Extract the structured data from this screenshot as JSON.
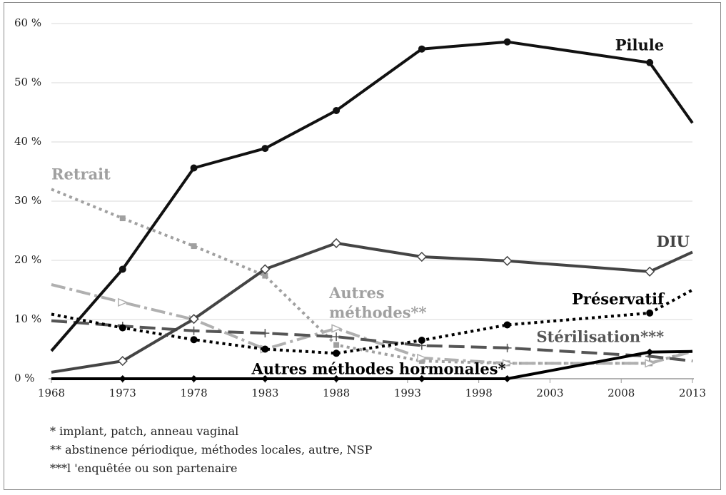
{
  "chart_data": {
    "type": "line",
    "x": [
      1968,
      1973,
      1978,
      1983,
      1988,
      1993,
      1998,
      2003,
      2008,
      2013
    ],
    "y_ticks": [
      "0 %",
      "10 %",
      "20 %",
      "30 %",
      "40 %",
      "50 %",
      "60 %"
    ],
    "ylim": [
      0,
      60
    ],
    "xlim": [
      1968,
      2013
    ],
    "grid": true,
    "legend": "inline labels",
    "series": [
      {
        "name": "Pilule",
        "color": "#111111",
        "dash": "solid",
        "marker": "circle-filled",
        "points": [
          [
            1968,
            4.7
          ],
          [
            1973,
            18.5
          ],
          [
            1978,
            35.6
          ],
          [
            1983,
            38.9
          ],
          [
            1988,
            45.3
          ],
          [
            1994,
            55.7
          ],
          [
            2000,
            56.9
          ],
          [
            2010,
            53.4
          ],
          [
            2013,
            43.2
          ]
        ]
      },
      {
        "name": "DIU",
        "color": "#444444",
        "dash": "solid",
        "marker": "diamond-open",
        "points": [
          [
            1968,
            1.1
          ],
          [
            1973,
            3.0
          ],
          [
            1978,
            10.1
          ],
          [
            1983,
            18.5
          ],
          [
            1988,
            22.9
          ],
          [
            1994,
            20.6
          ],
          [
            2000,
            19.9
          ],
          [
            2010,
            18.1
          ],
          [
            2013,
            21.4
          ]
        ]
      },
      {
        "name": "Retrait",
        "color": "#a0a0a0",
        "dash": "dotted",
        "marker": "square-filled",
        "points": [
          [
            1968,
            32.0
          ],
          [
            1973,
            27.1
          ],
          [
            1978,
            22.4
          ],
          [
            1983,
            17.4
          ],
          [
            1988,
            5.7
          ],
          [
            1994,
            3.0
          ],
          [
            2000,
            2.6
          ],
          [
            2010,
            2.6
          ],
          [
            2013,
            4.7
          ]
        ]
      },
      {
        "name": "Préservatif",
        "color": "#000000",
        "dash": "dotted",
        "marker": "circle-filled",
        "points": [
          [
            1968,
            10.9
          ],
          [
            1973,
            8.6
          ],
          [
            1978,
            6.6
          ],
          [
            1983,
            5.0
          ],
          [
            1988,
            4.3
          ],
          [
            1994,
            6.5
          ],
          [
            2000,
            9.1
          ],
          [
            2010,
            11.1
          ],
          [
            2013,
            15.0
          ]
        ]
      },
      {
        "name": "Stérilisation***",
        "color": "#555555",
        "dash": "long-dash",
        "marker": "plus",
        "points": [
          [
            1968,
            9.8
          ],
          [
            1973,
            8.9
          ],
          [
            1978,
            8.1
          ],
          [
            1983,
            7.7
          ],
          [
            1988,
            7.1
          ],
          [
            1994,
            5.6
          ],
          [
            2000,
            5.2
          ],
          [
            2010,
            3.8
          ],
          [
            2013,
            3.0
          ]
        ]
      },
      {
        "name": "Autres méthodes**",
        "color": "#b0b0b0",
        "dash": "dash-dot",
        "marker": "triangle-open",
        "points": [
          [
            1968,
            15.9
          ],
          [
            1973,
            12.9
          ],
          [
            1978,
            10.0
          ],
          [
            1983,
            5.0
          ],
          [
            1988,
            8.5
          ],
          [
            1994,
            3.5
          ],
          [
            2000,
            2.6
          ],
          [
            2010,
            2.6
          ],
          [
            2013,
            4.6
          ]
        ]
      },
      {
        "name": "Autres méthodes hormonales*",
        "color": "#000000",
        "dash": "solid",
        "marker": "diamond-filled",
        "points": [
          [
            1968,
            0
          ],
          [
            1973,
            0
          ],
          [
            1978,
            0
          ],
          [
            1983,
            0
          ],
          [
            1988,
            0
          ],
          [
            1994,
            0
          ],
          [
            2000,
            0
          ],
          [
            2010,
            4.5
          ],
          [
            2013,
            4.6
          ]
        ]
      }
    ],
    "labels": [
      {
        "text": "Pilule",
        "x": 2011,
        "y": 55.5,
        "color": "#111111",
        "anchor": "end"
      },
      {
        "text": "Retrait",
        "x": 1968,
        "y": 33.7,
        "color": "#a0a0a0",
        "anchor": "start"
      },
      {
        "text": "DIU",
        "x": 2012.8,
        "y": 22.3,
        "color": "#444444",
        "anchor": "end"
      },
      {
        "text": "Préservatif",
        "x": 2011,
        "y": 12.6,
        "color": "#000000",
        "anchor": "end"
      },
      {
        "text": "Stérilisation***",
        "x": 2011,
        "y": 6.2,
        "color": "#555555",
        "anchor": "end"
      },
      {
        "text": "Autres",
        "x": 1987.5,
        "y": 13.6,
        "color": "#a0a0a0",
        "anchor": "start"
      },
      {
        "text": "méthodes**",
        "x": 1987.5,
        "y": 10.3,
        "color": "#a0a0a0",
        "anchor": "start"
      },
      {
        "text": "Autres méthodes hormonales*",
        "x": 1999.9,
        "y": 0.8,
        "color": "#000000",
        "anchor": "end"
      }
    ]
  },
  "notes": [
    "* implant, patch, anneau vaginal",
    "** abstinence périodique, méthodes locales, autre, NSP",
    "***l 'enquêtée ou son partenaire"
  ]
}
